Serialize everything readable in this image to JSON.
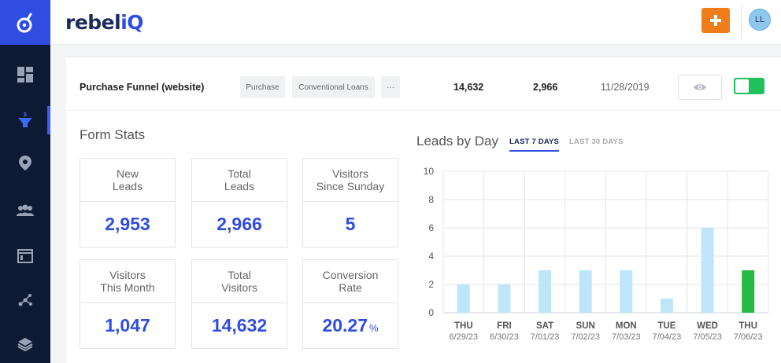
{
  "brand": {
    "name_part1": "rebel",
    "name_part2": "iQ"
  },
  "header": {
    "add_label": "+",
    "avatar_initials": "LL"
  },
  "sidebar": {
    "items": [
      {
        "name": "dashboard-icon"
      },
      {
        "name": "funnel-icon"
      },
      {
        "name": "location-icon"
      },
      {
        "name": "users-icon"
      },
      {
        "name": "browser-window-icon"
      },
      {
        "name": "network-icon"
      },
      {
        "name": "layers-icon"
      }
    ]
  },
  "funnel": {
    "name": "Purchase Funnel (website)",
    "tags": [
      "Purchase",
      "Conventional Loans",
      "···"
    ],
    "visitors": "14,632",
    "leads": "2,966",
    "date": "11/28/2019"
  },
  "form_stats": {
    "title": "Form Stats",
    "boxes": [
      {
        "label_line1": "New",
        "label_line2": "Leads",
        "value": "2,953"
      },
      {
        "label_line1": "Total",
        "label_line2": "Leads",
        "value": "2,966"
      },
      {
        "label_line1": "Visitors",
        "label_line2": "Since Sunday",
        "value": "5"
      },
      {
        "label_line1": "Visitors",
        "label_line2": "This Month",
        "value": "1,047"
      },
      {
        "label_line1": "Total",
        "label_line2": "Visitors",
        "value": "14,632"
      },
      {
        "label_line1": "Conversion",
        "label_line2": "Rate",
        "value": "20.27",
        "unit": "%"
      }
    ]
  },
  "leads_by_day": {
    "title": "Leads by Day",
    "tabs": [
      "LAST 7 DAYS",
      "LAST 30 DAYS"
    ]
  },
  "colors": {
    "accent": "#2f4de0",
    "bar": "#bfe6f8",
    "bar_highlight": "#22bb44",
    "sidebar_bg": "#0e1a33",
    "orange": "#f07c1a",
    "toggle_on": "#20c05c"
  },
  "chart_data": {
    "type": "bar",
    "title": "Leads by Day",
    "categories": [
      "THU",
      "FRI",
      "SAT",
      "SUN",
      "MON",
      "TUE",
      "WED",
      "THU"
    ],
    "dates": [
      "6/29/23",
      "6/30/23",
      "7/01/23",
      "7/02/23",
      "7/03/23",
      "7/04/23",
      "7/05/23",
      "7/06/23"
    ],
    "values": [
      2,
      2,
      3,
      3,
      3,
      1,
      6,
      3
    ],
    "highlight_index": 7,
    "ylim": [
      0,
      10
    ],
    "yticks": [
      0,
      2,
      4,
      6,
      8,
      10
    ],
    "xlabel": "",
    "ylabel": "",
    "grid": true
  }
}
